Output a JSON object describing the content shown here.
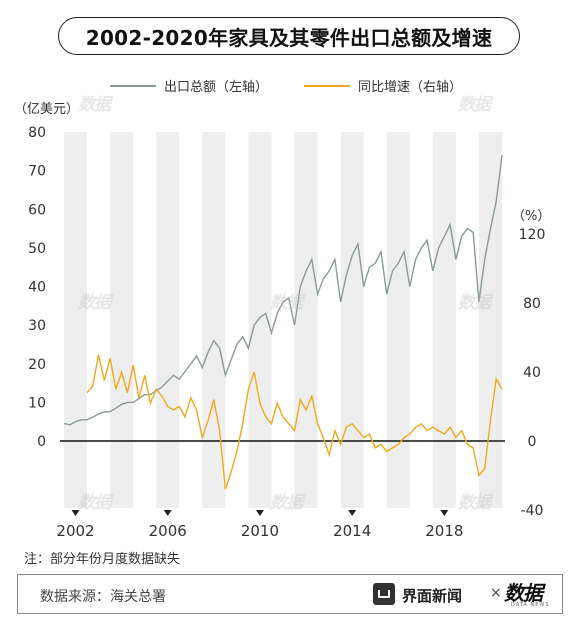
{
  "title": "2002-2020年家具及其零件出口总额及增速",
  "legend": {
    "left": "出口总额（左轴）",
    "right": "同比增速（右轴）"
  },
  "colors": {
    "left_series": "#8a9a9a",
    "right_series": "#f0a71e",
    "stripe": "#eeeeee",
    "zero_line": "#111111"
  },
  "note": "注：部分年份月度数据缺失",
  "footer": {
    "source": "数据来源：海关总署",
    "brand": "界面新闻",
    "times": "×",
    "logo": "数据",
    "logo_sub": "DATA NEWS"
  },
  "watermark": "数据",
  "chart_data": {
    "type": "line",
    "left_axis": {
      "unit_label": "（亿美元）",
      "ticks": [
        0,
        10,
        20,
        30,
        40,
        50,
        60,
        70,
        80
      ],
      "ylim": [
        0,
        80
      ]
    },
    "right_axis": {
      "unit_label": "（%）",
      "ticks": [
        -40,
        0,
        40,
        80,
        120
      ],
      "ylim": [
        -40,
        120
      ]
    },
    "x_axis": {
      "tick_labels": [
        "2002",
        "2006",
        "2010",
        "2014",
        "2018"
      ],
      "tick_values": [
        2002,
        2006,
        2010,
        2014,
        2018
      ],
      "range": [
        2002,
        2021
      ]
    },
    "shaded_years": [
      2002,
      2004,
      2006,
      2008,
      2010,
      2012,
      2014,
      2016,
      2018,
      2020
    ],
    "series": [
      {
        "name": "出口总额（左轴）",
        "axis": "left",
        "points": [
          [
            2002.0,
            4.5
          ],
          [
            2002.25,
            4.2
          ],
          [
            2002.5,
            5.0
          ],
          [
            2002.75,
            5.5
          ],
          [
            2003.0,
            5.5
          ],
          [
            2003.25,
            6.2
          ],
          [
            2003.5,
            7.0
          ],
          [
            2003.75,
            7.5
          ],
          [
            2004.0,
            7.6
          ],
          [
            2004.25,
            8.5
          ],
          [
            2004.5,
            9.5
          ],
          [
            2004.75,
            10.0
          ],
          [
            2005.0,
            10.0
          ],
          [
            2005.25,
            11.0
          ],
          [
            2005.5,
            12.0
          ],
          [
            2005.75,
            12.0
          ],
          [
            2006.0,
            13.0
          ],
          [
            2006.25,
            14.0
          ],
          [
            2006.5,
            15.5
          ],
          [
            2006.75,
            17.0
          ],
          [
            2007.0,
            16.0
          ],
          [
            2007.25,
            18.0
          ],
          [
            2007.5,
            20.0
          ],
          [
            2007.75,
            22.0
          ],
          [
            2008.0,
            19.0
          ],
          [
            2008.25,
            23.0
          ],
          [
            2008.5,
            26.0
          ],
          [
            2008.75,
            24.0
          ],
          [
            2009.0,
            17.0
          ],
          [
            2009.25,
            21.0
          ],
          [
            2009.5,
            25.0
          ],
          [
            2009.75,
            27.0
          ],
          [
            2010.0,
            24.0
          ],
          [
            2010.25,
            30.0
          ],
          [
            2010.5,
            32.0
          ],
          [
            2010.75,
            33.0
          ],
          [
            2011.0,
            28.0
          ],
          [
            2011.25,
            33.0
          ],
          [
            2011.5,
            36.0
          ],
          [
            2011.75,
            37.0
          ],
          [
            2012.0,
            30.0
          ],
          [
            2012.25,
            40.0
          ],
          [
            2012.5,
            44.0
          ],
          [
            2012.75,
            47.0
          ],
          [
            2013.0,
            38.0
          ],
          [
            2013.25,
            42.0
          ],
          [
            2013.5,
            44.0
          ],
          [
            2013.75,
            47.0
          ],
          [
            2014.0,
            36.0
          ],
          [
            2014.25,
            43.0
          ],
          [
            2014.5,
            48.0
          ],
          [
            2014.75,
            51.0
          ],
          [
            2015.0,
            40.0
          ],
          [
            2015.25,
            45.0
          ],
          [
            2015.5,
            46.0
          ],
          [
            2015.75,
            49.0
          ],
          [
            2016.0,
            38.0
          ],
          [
            2016.25,
            44.0
          ],
          [
            2016.5,
            46.0
          ],
          [
            2016.75,
            49.0
          ],
          [
            2017.0,
            40.0
          ],
          [
            2017.25,
            47.0
          ],
          [
            2017.5,
            50.0
          ],
          [
            2017.75,
            52.0
          ],
          [
            2018.0,
            44.0
          ],
          [
            2018.25,
            50.0
          ],
          [
            2018.5,
            53.0
          ],
          [
            2018.75,
            56.0
          ],
          [
            2019.0,
            47.0
          ],
          [
            2019.25,
            53.0
          ],
          [
            2019.5,
            55.0
          ],
          [
            2019.75,
            54.0
          ],
          [
            2020.0,
            36.0
          ],
          [
            2020.25,
            47.0
          ],
          [
            2020.5,
            55.0
          ],
          [
            2020.75,
            62.0
          ],
          [
            2021.0,
            74.0
          ]
        ]
      },
      {
        "name": "同比增速（右轴）",
        "axis": "right",
        "points": [
          [
            2003.0,
            28
          ],
          [
            2003.25,
            32
          ],
          [
            2003.5,
            50
          ],
          [
            2003.75,
            35
          ],
          [
            2004.0,
            48
          ],
          [
            2004.25,
            30
          ],
          [
            2004.5,
            40
          ],
          [
            2004.75,
            28
          ],
          [
            2005.0,
            44
          ],
          [
            2005.25,
            25
          ],
          [
            2005.5,
            38
          ],
          [
            2005.75,
            22
          ],
          [
            2006.0,
            30
          ],
          [
            2006.25,
            26
          ],
          [
            2006.5,
            20
          ],
          [
            2006.75,
            18
          ],
          [
            2007.0,
            20
          ],
          [
            2007.25,
            14
          ],
          [
            2007.5,
            25
          ],
          [
            2007.75,
            18
          ],
          [
            2008.0,
            2
          ],
          [
            2008.25,
            12
          ],
          [
            2008.5,
            24
          ],
          [
            2008.75,
            6
          ],
          [
            2009.0,
            -28
          ],
          [
            2009.25,
            -18
          ],
          [
            2009.5,
            -6
          ],
          [
            2009.75,
            10
          ],
          [
            2010.0,
            30
          ],
          [
            2010.25,
            40
          ],
          [
            2010.5,
            22
          ],
          [
            2010.75,
            14
          ],
          [
            2011.0,
            10
          ],
          [
            2011.25,
            22
          ],
          [
            2011.5,
            14
          ],
          [
            2011.75,
            10
          ],
          [
            2012.0,
            6
          ],
          [
            2012.25,
            24
          ],
          [
            2012.5,
            18
          ],
          [
            2012.75,
            26
          ],
          [
            2013.0,
            10
          ],
          [
            2013.25,
            2
          ],
          [
            2013.5,
            -8
          ],
          [
            2013.75,
            6
          ],
          [
            2014.0,
            -2
          ],
          [
            2014.25,
            8
          ],
          [
            2014.5,
            10
          ],
          [
            2014.75,
            6
          ],
          [
            2015.0,
            2
          ],
          [
            2015.25,
            4
          ],
          [
            2015.5,
            -4
          ],
          [
            2015.75,
            -2
          ],
          [
            2016.0,
            -6
          ],
          [
            2016.25,
            -4
          ],
          [
            2016.5,
            -2
          ],
          [
            2016.75,
            2
          ],
          [
            2017.0,
            4
          ],
          [
            2017.25,
            8
          ],
          [
            2017.5,
            10
          ],
          [
            2017.75,
            6
          ],
          [
            2018.0,
            8
          ],
          [
            2018.25,
            6
          ],
          [
            2018.5,
            4
          ],
          [
            2018.75,
            8
          ],
          [
            2019.0,
            2
          ],
          [
            2019.25,
            6
          ],
          [
            2019.5,
            -2
          ],
          [
            2019.75,
            -4
          ],
          [
            2020.0,
            -20
          ],
          [
            2020.25,
            -16
          ],
          [
            2020.5,
            12
          ],
          [
            2020.75,
            36
          ],
          [
            2021.0,
            30
          ]
        ]
      }
    ]
  }
}
